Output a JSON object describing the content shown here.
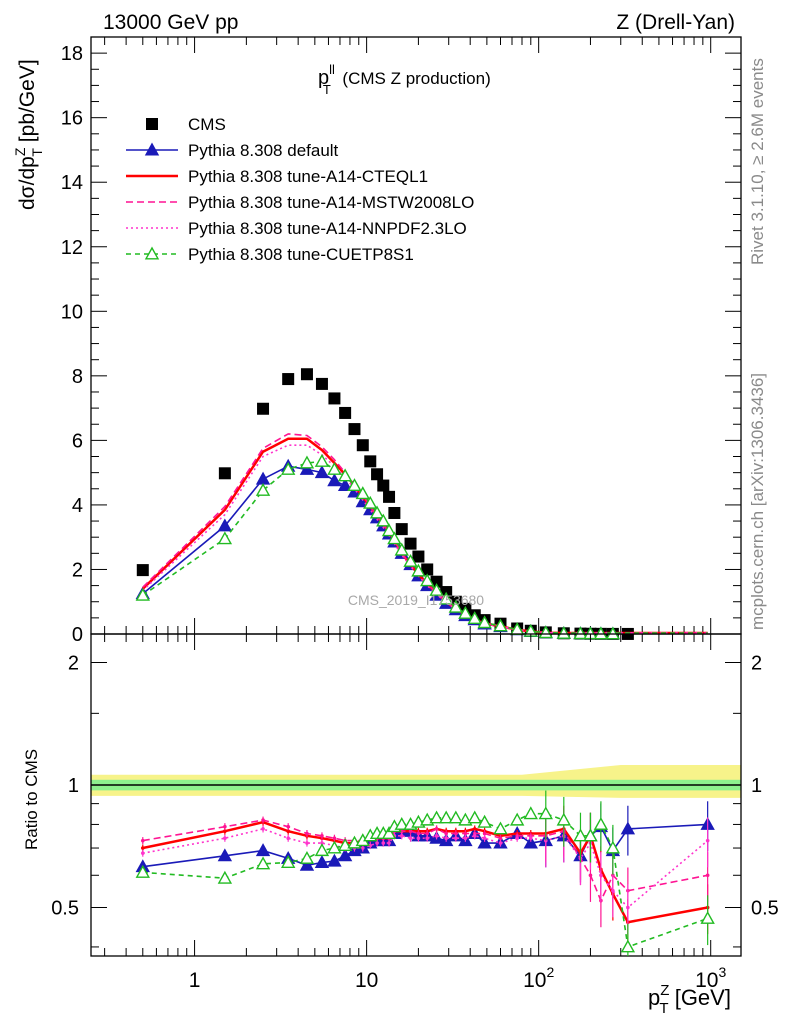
{
  "header": {
    "left": "13000 GeV pp",
    "right": "Z (Drell-Yan)"
  },
  "side_labels": {
    "top": "Rivet 3.1.10, ≥ 2.6M events",
    "bottom": "mcplots.cern.ch [arXiv:1306.3436]"
  },
  "watermark": "CMS_2019_I1753680",
  "chart_data": [
    {
      "type": "scatter",
      "panel": "main",
      "title": "p_T^ll (CMS Z production)",
      "title_main": "p",
      "title_sup": "ll",
      "title_sub": "T",
      "title_rest": "(CMS Z production)",
      "ylabel": "dσ/dp_T^Z [pb/GeV]",
      "ylabel_parts": [
        "dσ/dp",
        "Z",
        "T",
        " [pb/GeV]"
      ],
      "xlabel": "p_T^Z [GeV]",
      "xlabel_parts": [
        "p",
        "Z",
        "T",
        " [GeV]"
      ],
      "xscale": "log",
      "xlim": [
        0.25,
        1500
      ],
      "ylim": [
        0,
        18.5
      ],
      "yticks": [
        0,
        2,
        4,
        6,
        8,
        10,
        12,
        14,
        16,
        18
      ],
      "xticks": [
        {
          "value": 1,
          "label": "1",
          "exp": ""
        },
        {
          "value": 10,
          "label": "10",
          "exp": ""
        },
        {
          "value": 100,
          "label": "10",
          "exp": "2"
        },
        {
          "value": 1000,
          "label": "10",
          "exp": "3"
        }
      ],
      "legend_position": "top-left",
      "x": [
        0.5,
        1.5,
        2.5,
        3.5,
        4.5,
        5.5,
        6.5,
        7.5,
        8.5,
        9.5,
        10.5,
        11.5,
        12.5,
        13.5,
        14.5,
        16,
        18,
        20,
        22.5,
        25.5,
        29,
        33,
        37.5,
        42.5,
        48.5,
        60,
        75,
        90,
        110,
        140,
        175,
        200,
        230,
        270,
        330,
        960
      ],
      "series": [
        {
          "name": "CMS",
          "style": "data",
          "color": "#000000",
          "values": [
            1.98,
            4.98,
            6.98,
            7.9,
            8.05,
            7.75,
            7.3,
            6.85,
            6.35,
            5.85,
            5.35,
            4.95,
            4.6,
            4.25,
            3.75,
            3.25,
            2.8,
            2.4,
            2.0,
            1.62,
            1.3,
            1.0,
            0.78,
            0.58,
            0.43,
            0.32,
            0.17,
            0.1,
            0.05,
            0.022,
            0.012,
            0.008,
            0.005,
            0.003,
            0.002,
            0.0001
          ]
        },
        {
          "name": "Pythia 8.308 default",
          "style": "line-triangle",
          "color": "#1a1ab8",
          "values": [
            1.25,
            3.35,
            4.8,
            5.2,
            5.1,
            5.0,
            4.75,
            4.6,
            4.4,
            4.1,
            3.85,
            3.6,
            3.35,
            3.1,
            2.85,
            2.5,
            2.15,
            1.8,
            1.5,
            1.2,
            0.95,
            0.75,
            0.57,
            0.44,
            0.31,
            0.23,
            0.13,
            0.08,
            0.04,
            0.018,
            0.009,
            0.006,
            0.004,
            0.002,
            0.0015,
            0.0001
          ]
        },
        {
          "name": "Pythia 8.308 tune-A14-CTEQL1",
          "style": "solid",
          "color": "#ff0000",
          "values": [
            1.4,
            3.85,
            5.65,
            6.05,
            6.05,
            5.7,
            5.3,
            4.95,
            4.6,
            4.25,
            3.95,
            3.65,
            3.4,
            3.15,
            2.9,
            2.5,
            2.15,
            1.85,
            1.55,
            1.27,
            1.0,
            0.77,
            0.6,
            0.45,
            0.33,
            0.24,
            0.13,
            0.08,
            0.04,
            0.017,
            0.009,
            0.006,
            0.004,
            0.002,
            0.0015,
            0.0001
          ]
        },
        {
          "name": "Pythia 8.308 tune-A14-MSTW2008LO",
          "style": "dashed",
          "color": "#ff1493",
          "values": [
            1.45,
            3.95,
            5.75,
            6.2,
            6.15,
            5.8,
            5.4,
            5.0,
            4.65,
            4.3,
            3.95,
            3.65,
            3.4,
            3.15,
            2.9,
            2.5,
            2.15,
            1.85,
            1.55,
            1.27,
            1.0,
            0.77,
            0.6,
            0.45,
            0.33,
            0.24,
            0.13,
            0.08,
            0.04,
            0.017,
            0.009,
            0.006,
            0.004,
            0.002,
            0.0015,
            0.0001
          ]
        },
        {
          "name": "Pythia 8.308 tune-A14-NNPDF2.3LO",
          "style": "dotted",
          "color": "#ff33cc",
          "values": [
            1.35,
            3.7,
            5.5,
            5.85,
            5.85,
            5.55,
            5.2,
            4.85,
            4.5,
            4.15,
            3.85,
            3.55,
            3.3,
            3.05,
            2.8,
            2.45,
            2.1,
            1.8,
            1.5,
            1.23,
            0.98,
            0.76,
            0.58,
            0.44,
            0.32,
            0.23,
            0.13,
            0.08,
            0.04,
            0.017,
            0.009,
            0.006,
            0.004,
            0.002,
            0.0015,
            0.0001
          ]
        },
        {
          "name": "Pythia 8.308 tune-CUETP8S1",
          "style": "dashed-open-triangle",
          "color": "#22bb22",
          "values": [
            1.2,
            2.95,
            4.45,
            5.1,
            5.3,
            5.35,
            5.1,
            4.9,
            4.6,
            4.35,
            4.05,
            3.75,
            3.5,
            3.2,
            2.95,
            2.6,
            2.25,
            1.95,
            1.65,
            1.35,
            1.08,
            0.83,
            0.64,
            0.48,
            0.35,
            0.25,
            0.14,
            0.085,
            0.042,
            0.018,
            0.009,
            0.006,
            0.004,
            0.002,
            0.0015,
            0.0001
          ]
        }
      ]
    },
    {
      "type": "line",
      "panel": "ratio",
      "ylabel": "Ratio to CMS",
      "yscale": "log",
      "ylim": [
        0.38,
        2.35
      ],
      "yticks": [
        {
          "value": 0.5,
          "label": "0.5"
        },
        {
          "value": 1,
          "label": "1"
        },
        {
          "value": 2,
          "label": "2"
        }
      ],
      "xscale": "log",
      "xlim": [
        0.25,
        1500
      ],
      "reference_line": 1,
      "uncertainty_band_inner": {
        "color": "#8ef08e",
        "lower": 0.97,
        "upper": 1.03
      },
      "uncertainty_band_outer": {
        "color": "#f7f38a",
        "lower": 0.94,
        "upper": 1.06,
        "lower_high_x": 0.93,
        "upper_high_x": 1.12
      },
      "x": [
        0.5,
        1.5,
        2.5,
        3.5,
        4.5,
        5.5,
        6.5,
        7.5,
        8.5,
        9.5,
        10.5,
        11.5,
        12.5,
        13.5,
        14.5,
        16,
        18,
        20,
        22.5,
        25.5,
        29,
        33,
        37.5,
        42.5,
        48.5,
        60,
        75,
        90,
        110,
        140,
        175,
        200,
        230,
        270,
        330,
        960
      ],
      "series": [
        {
          "name": "Pythia 8.308 default",
          "color": "#1a1ab8",
          "values": [
            0.63,
            0.67,
            0.69,
            0.66,
            0.635,
            0.645,
            0.65,
            0.67,
            0.69,
            0.7,
            0.72,
            0.73,
            0.73,
            0.73,
            0.76,
            0.77,
            0.77,
            0.75,
            0.75,
            0.74,
            0.73,
            0.75,
            0.73,
            0.76,
            0.72,
            0.72,
            0.76,
            0.72,
            0.73,
            0.75,
            0.67,
            0.75,
            0.79,
            0.69,
            0.78,
            0.8
          ]
        },
        {
          "name": "Pythia 8.308 tune-A14-CTEQL1",
          "color": "#ff0000",
          "values": [
            0.7,
            0.77,
            0.81,
            0.77,
            0.75,
            0.74,
            0.73,
            0.72,
            0.72,
            0.73,
            0.74,
            0.74,
            0.74,
            0.74,
            0.77,
            0.77,
            0.77,
            0.77,
            0.77,
            0.78,
            0.77,
            0.77,
            0.77,
            0.78,
            0.77,
            0.75,
            0.76,
            0.76,
            0.76,
            0.78,
            0.68,
            0.75,
            0.62,
            0.54,
            0.46,
            0.5
          ]
        },
        {
          "name": "Pythia 8.308 tune-A14-MSTW2008LO",
          "color": "#ff1493",
          "values": [
            0.73,
            0.79,
            0.82,
            0.79,
            0.76,
            0.75,
            0.74,
            0.73,
            0.73,
            0.73,
            0.74,
            0.74,
            0.74,
            0.74,
            0.77,
            0.77,
            0.77,
            0.76,
            0.76,
            0.78,
            0.76,
            0.76,
            0.76,
            0.76,
            0.76,
            0.74,
            0.75,
            0.75,
            0.75,
            0.77,
            0.66,
            0.6,
            0.52,
            0.6,
            0.55,
            0.6
          ]
        },
        {
          "name": "Pythia 8.308 tune-A14-NNPDF2.3LO",
          "color": "#ff33cc",
          "values": [
            0.68,
            0.74,
            0.78,
            0.74,
            0.72,
            0.72,
            0.71,
            0.7,
            0.7,
            0.7,
            0.71,
            0.72,
            0.72,
            0.72,
            0.75,
            0.75,
            0.74,
            0.74,
            0.74,
            0.75,
            0.74,
            0.74,
            0.74,
            0.75,
            0.74,
            0.72,
            0.74,
            0.74,
            0.73,
            0.75,
            0.66,
            0.72,
            0.6,
            0.55,
            0.5,
            0.73
          ]
        },
        {
          "name": "Pythia 8.308 tune-CUETP8S1",
          "color": "#22bb22",
          "values": [
            0.61,
            0.59,
            0.64,
            0.645,
            0.66,
            0.69,
            0.7,
            0.71,
            0.72,
            0.73,
            0.75,
            0.76,
            0.76,
            0.76,
            0.79,
            0.8,
            0.8,
            0.81,
            0.82,
            0.83,
            0.83,
            0.83,
            0.82,
            0.83,
            0.81,
            0.78,
            0.82,
            0.85,
            0.85,
            0.82,
            0.75,
            0.75,
            0.8,
            0.7,
            0.4,
            0.47
          ]
        }
      ]
    }
  ]
}
